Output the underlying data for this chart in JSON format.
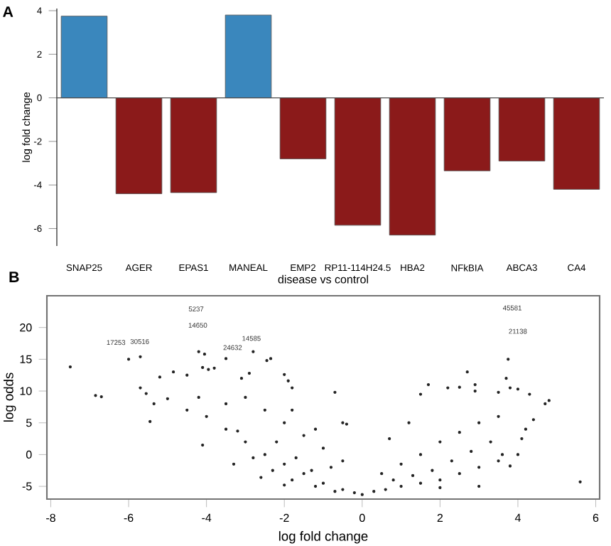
{
  "chart_data": [
    {
      "type": "bar",
      "ylabel": "log fold change",
      "annotations": [
        "A"
      ],
      "categories": [
        "SNAP25",
        "AGER",
        "EPAS1",
        "MANEAL",
        "EMP2",
        "RP11-114H24.5",
        "HBA2",
        "NFkBIA",
        "ABCA3",
        "CA4"
      ],
      "values": [
        3.75,
        -4.4,
        -4.35,
        3.8,
        -2.8,
        -5.85,
        -6.3,
        -3.35,
        -2.9,
        -4.2
      ],
      "colors": [
        "#3a87bd",
        "#8b1a1a",
        "#8b1a1a",
        "#3a87bd",
        "#8b1a1a",
        "#8b1a1a",
        "#8b1a1a",
        "#8b1a1a",
        "#8b1a1a",
        "#8b1a1a"
      ],
      "ylim": [
        -6.8,
        4.1
      ],
      "yticks": [
        -6,
        -4,
        -2,
        0,
        2,
        4
      ]
    },
    {
      "type": "scatter",
      "title": "disease vs control",
      "xlabel": "log fold change",
      "ylabel": "log odds",
      "marker": "circle",
      "annotations": [
        "B",
        "5237",
        "14650",
        "17253",
        "30516",
        "24632",
        "14585",
        "45581",
        "21138"
      ],
      "x": [
        -7.5,
        -6.85,
        -6.7,
        -6.0,
        -5.7,
        -5.7,
        -5.55,
        -5.45,
        -5.35,
        -5.2,
        -5.0,
        -4.85,
        -4.5,
        -4.2,
        -4.05,
        -4.1,
        -3.95,
        -3.8,
        -3.5,
        -3.1,
        -2.9,
        -2.8,
        -2.45,
        -2.35,
        -2.0,
        -1.9,
        -1.8,
        -0.7,
        -0.5,
        -0.4,
        -4.1,
        -3.2,
        -4.5,
        -4.0,
        -3.5,
        -3.0,
        -2.5,
        -2.0,
        -1.5,
        -1.0,
        -0.5,
        -0.2,
        0.0,
        -3.0,
        -2.5,
        -2.0,
        -1.5,
        -1.0,
        -0.5,
        -1.8,
        -1.2,
        -0.8,
        -3.5,
        -4.2,
        -2.2,
        -1.7,
        -1.3,
        -2.8,
        -2.3,
        -1.8,
        -1.2,
        -0.7,
        -3.3,
        -2.6,
        -2.0,
        0.3,
        0.6,
        1.0,
        1.5,
        2.0,
        2.5,
        3.0,
        3.5,
        4.0,
        0.5,
        1.0,
        1.5,
        2.0,
        2.5,
        3.0,
        3.5,
        1.2,
        1.5,
        1.7,
        2.2,
        2.5,
        2.7,
        2.9,
        2.9,
        3.5,
        3.7,
        3.75,
        3.8,
        4.0,
        4.3,
        4.7,
        4.8,
        4.4,
        4.2,
        5.6,
        3.0,
        2.0,
        3.8,
        4.1,
        1.8,
        2.3,
        2.8,
        3.3,
        0.8,
        1.3,
        0.7,
        3.6
      ],
      "values": [
        13.8,
        9.3,
        9.1,
        15.0,
        15.4,
        10.5,
        9.6,
        5.2,
        8.0,
        12.2,
        8.8,
        13.0,
        12.5,
        16.2,
        15.8,
        13.7,
        13.4,
        13.6,
        15.1,
        12.0,
        12.8,
        16.2,
        14.8,
        15.1,
        12.6,
        11.6,
        10.5,
        9.8,
        5.0,
        4.8,
        1.5,
        3.7,
        7.0,
        6.0,
        4.0,
        2.0,
        0.0,
        -1.5,
        -3.0,
        -4.5,
        -5.5,
        -6.0,
        -6.3,
        9.0,
        7.0,
        5.0,
        3.0,
        1.0,
        -1.0,
        7.0,
        4.0,
        -2.0,
        8.0,
        9.0,
        2.0,
        -0.5,
        -2.5,
        -0.5,
        -2.5,
        -4.0,
        -5.0,
        -5.8,
        -1.5,
        -3.6,
        -4.8,
        -5.8,
        -5.5,
        -5.0,
        -4.5,
        -4.0,
        -3.0,
        -2.0,
        -1.0,
        0.0,
        -3.0,
        -1.5,
        0.0,
        2.0,
        3.5,
        5.0,
        6.0,
        5.0,
        9.5,
        11.0,
        10.5,
        10.6,
        13.0,
        11.0,
        10.0,
        9.8,
        12.0,
        15.0,
        10.5,
        10.3,
        9.5,
        8.0,
        8.5,
        5.5,
        4.0,
        -4.3,
        -5.0,
        -5.2,
        -1.8,
        2.5,
        -2.5,
        -1.0,
        0.5,
        2.0,
        -4.0,
        -3.3,
        2.5,
        0.0
      ],
      "color": "#222222",
      "xlim": [
        -8.1,
        6.1
      ],
      "xticks": [
        -8,
        -6,
        -4,
        -2,
        0,
        2,
        4,
        6
      ],
      "ylim": [
        -7,
        25
      ],
      "yticks": [
        -5,
        0,
        5,
        10,
        15,
        20
      ]
    }
  ]
}
